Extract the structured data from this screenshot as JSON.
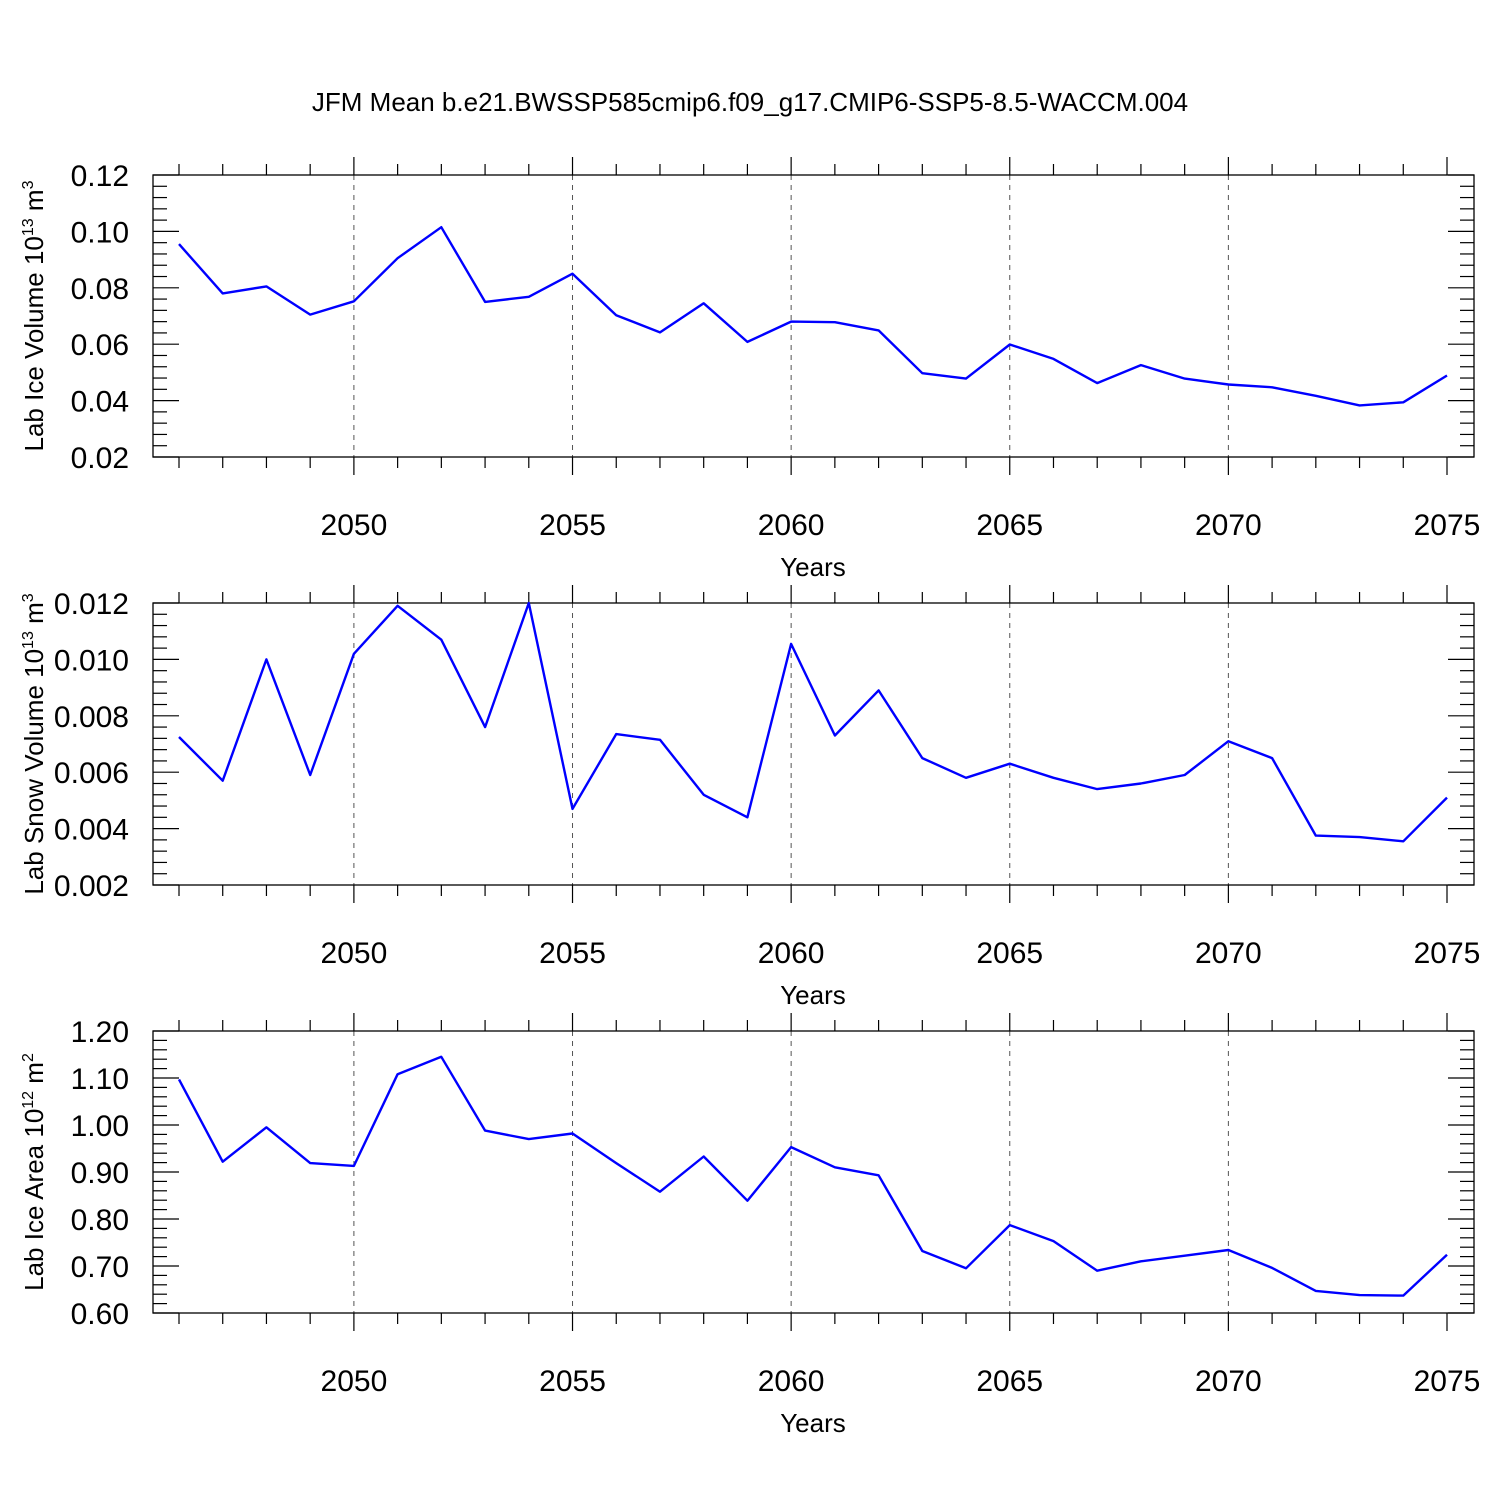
{
  "title": "JFM Mean b.e21.BWSSP585cmip6.f09_g17.CMIP6-SSP5-8.5-WACCM.004",
  "chart_data": [
    {
      "type": "line",
      "ylabel_prefix": "Lab Ice Volume 10",
      "ylabel_exp": "13",
      "ylabel_unit": " m",
      "ylabel_unit_exp": "3",
      "xlabel": "Years",
      "ylim": [
        0.02,
        0.12
      ],
      "xlim": [
        2046,
        2075
      ],
      "yticks": [
        0.02,
        0.04,
        0.06,
        0.08,
        0.1,
        0.12
      ],
      "ytick_labels": [
        "0.02",
        "0.04",
        "0.06",
        "0.08",
        "0.10",
        "0.12"
      ],
      "xticks": [
        2050,
        2055,
        2060,
        2065,
        2070,
        2075
      ],
      "xtick_labels": [
        "2050",
        "2055",
        "2060",
        "2065",
        "2070",
        "2075"
      ],
      "grid": "x-dashed",
      "color": "#0000ff",
      "x": [
        2046,
        2047,
        2048,
        2049,
        2050,
        2051,
        2052,
        2053,
        2054,
        2055,
        2056,
        2057,
        2058,
        2059,
        2060,
        2061,
        2062,
        2063,
        2064,
        2065,
        2066,
        2067,
        2068,
        2069,
        2070,
        2071,
        2072,
        2073,
        2074,
        2075
      ],
      "values": [
        0.0955,
        0.078,
        0.0805,
        0.0705,
        0.0752,
        0.0905,
        0.1015,
        0.075,
        0.0768,
        0.085,
        0.0703,
        0.0642,
        0.0745,
        0.0608,
        0.068,
        0.0678,
        0.0649,
        0.0497,
        0.0478,
        0.0599,
        0.0548,
        0.0462,
        0.0526,
        0.0478,
        0.0457,
        0.0447,
        0.0417,
        0.0383,
        0.0394,
        0.0489
      ]
    },
    {
      "type": "line",
      "ylabel_prefix": "Lab Snow Volume 10",
      "ylabel_exp": "13",
      "ylabel_unit": " m",
      "ylabel_unit_exp": "3",
      "xlabel": "Years",
      "ylim": [
        0.002,
        0.012
      ],
      "xlim": [
        2046,
        2075
      ],
      "yticks": [
        0.002,
        0.004,
        0.006,
        0.008,
        0.01,
        0.012
      ],
      "ytick_labels": [
        "0.002",
        "0.004",
        "0.006",
        "0.008",
        "0.010",
        "0.012"
      ],
      "xticks": [
        2050,
        2055,
        2060,
        2065,
        2070,
        2075
      ],
      "xtick_labels": [
        "2050",
        "2055",
        "2060",
        "2065",
        "2070",
        "2075"
      ],
      "grid": "x-dashed",
      "color": "#0000ff",
      "x": [
        2046,
        2047,
        2048,
        2049,
        2050,
        2051,
        2052,
        2053,
        2054,
        2055,
        2056,
        2057,
        2058,
        2059,
        2060,
        2061,
        2062,
        2063,
        2064,
        2065,
        2066,
        2067,
        2068,
        2069,
        2070,
        2071,
        2072,
        2073,
        2074,
        2075
      ],
      "values": [
        0.00725,
        0.0057,
        0.01,
        0.0059,
        0.0102,
        0.0119,
        0.0107,
        0.0076,
        0.012,
        0.0047,
        0.00735,
        0.00715,
        0.0052,
        0.0044,
        0.01055,
        0.0073,
        0.0089,
        0.0065,
        0.0058,
        0.0063,
        0.0058,
        0.0054,
        0.0056,
        0.0059,
        0.0071,
        0.0065,
        0.00375,
        0.0037,
        0.00355,
        0.0051
      ]
    },
    {
      "type": "line",
      "ylabel_prefix": "Lab Ice Area 10",
      "ylabel_exp": "12",
      "ylabel_unit": " m",
      "ylabel_unit_exp": "2",
      "xlabel": "Years",
      "ylim": [
        0.6,
        1.2
      ],
      "xlim": [
        2046,
        2075
      ],
      "yticks": [
        0.6,
        0.7,
        0.8,
        0.9,
        1.0,
        1.1,
        1.2
      ],
      "ytick_labels": [
        "0.60",
        "0.70",
        "0.80",
        "0.90",
        "1.00",
        "1.10",
        "1.20"
      ],
      "xticks": [
        2050,
        2055,
        2060,
        2065,
        2070,
        2075
      ],
      "xtick_labels": [
        "2050",
        "2055",
        "2060",
        "2065",
        "2070",
        "2075"
      ],
      "grid": "x-dashed",
      "color": "#0000ff",
      "x": [
        2046,
        2047,
        2048,
        2049,
        2050,
        2051,
        2052,
        2053,
        2054,
        2055,
        2056,
        2057,
        2058,
        2059,
        2060,
        2061,
        2062,
        2063,
        2064,
        2065,
        2066,
        2067,
        2068,
        2069,
        2070,
        2071,
        2072,
        2073,
        2074,
        2075
      ],
      "values": [
        1.097,
        0.922,
        0.995,
        0.919,
        0.913,
        1.108,
        1.145,
        0.988,
        0.97,
        0.982,
        0.919,
        0.858,
        0.933,
        0.839,
        0.953,
        0.91,
        0.893,
        0.732,
        0.695,
        0.787,
        0.753,
        0.69,
        0.71,
        0.722,
        0.734,
        0.696,
        0.647,
        0.638,
        0.637,
        0.724
      ]
    }
  ]
}
